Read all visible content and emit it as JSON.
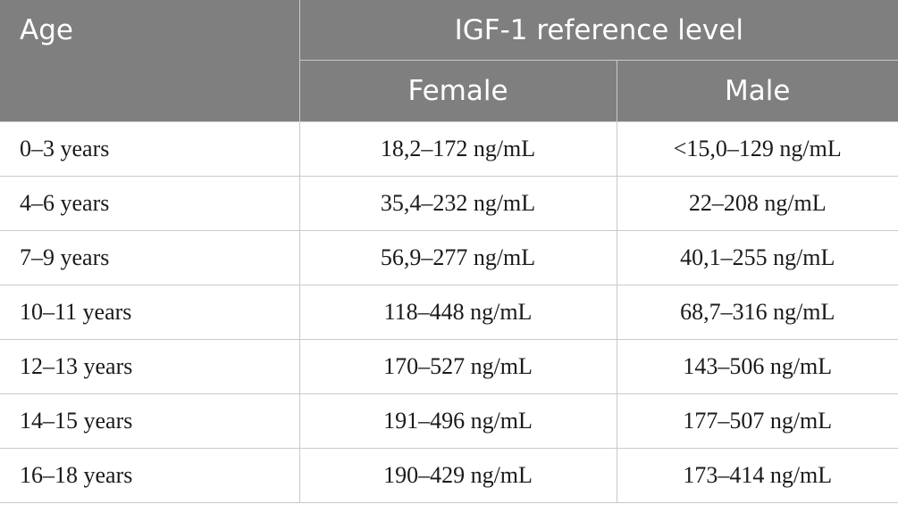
{
  "table": {
    "headers": {
      "age": "Age",
      "group": "IGF-1 reference level",
      "female": "Female",
      "male": "Male"
    },
    "rows": [
      {
        "age": "0–3 years",
        "female": "18,2–172 ng/mL",
        "male": "<15,0–129 ng/mL"
      },
      {
        "age": "4–6 years",
        "female": "35,4–232 ng/mL",
        "male": "22–208 ng/mL"
      },
      {
        "age": "7–9 years",
        "female": "56,9–277 ng/mL",
        "male": "40,1–255 ng/mL"
      },
      {
        "age": "10–11 years",
        "female": "118–448 ng/mL",
        "male": "68,7–316 ng/mL"
      },
      {
        "age": "12–13 years",
        "female": "170–527 ng/mL",
        "male": "143–506 ng/mL"
      },
      {
        "age": "14–15 years",
        "female": "191–496 ng/mL",
        "male": "177–507 ng/mL"
      },
      {
        "age": "16–18 years",
        "female": "190–429 ng/mL",
        "male": "173–414 ng/mL"
      }
    ]
  },
  "colors": {
    "header_bg": "#7e7f7e",
    "header_text": "#ffffff",
    "grid_line": "#c9c9c9"
  }
}
